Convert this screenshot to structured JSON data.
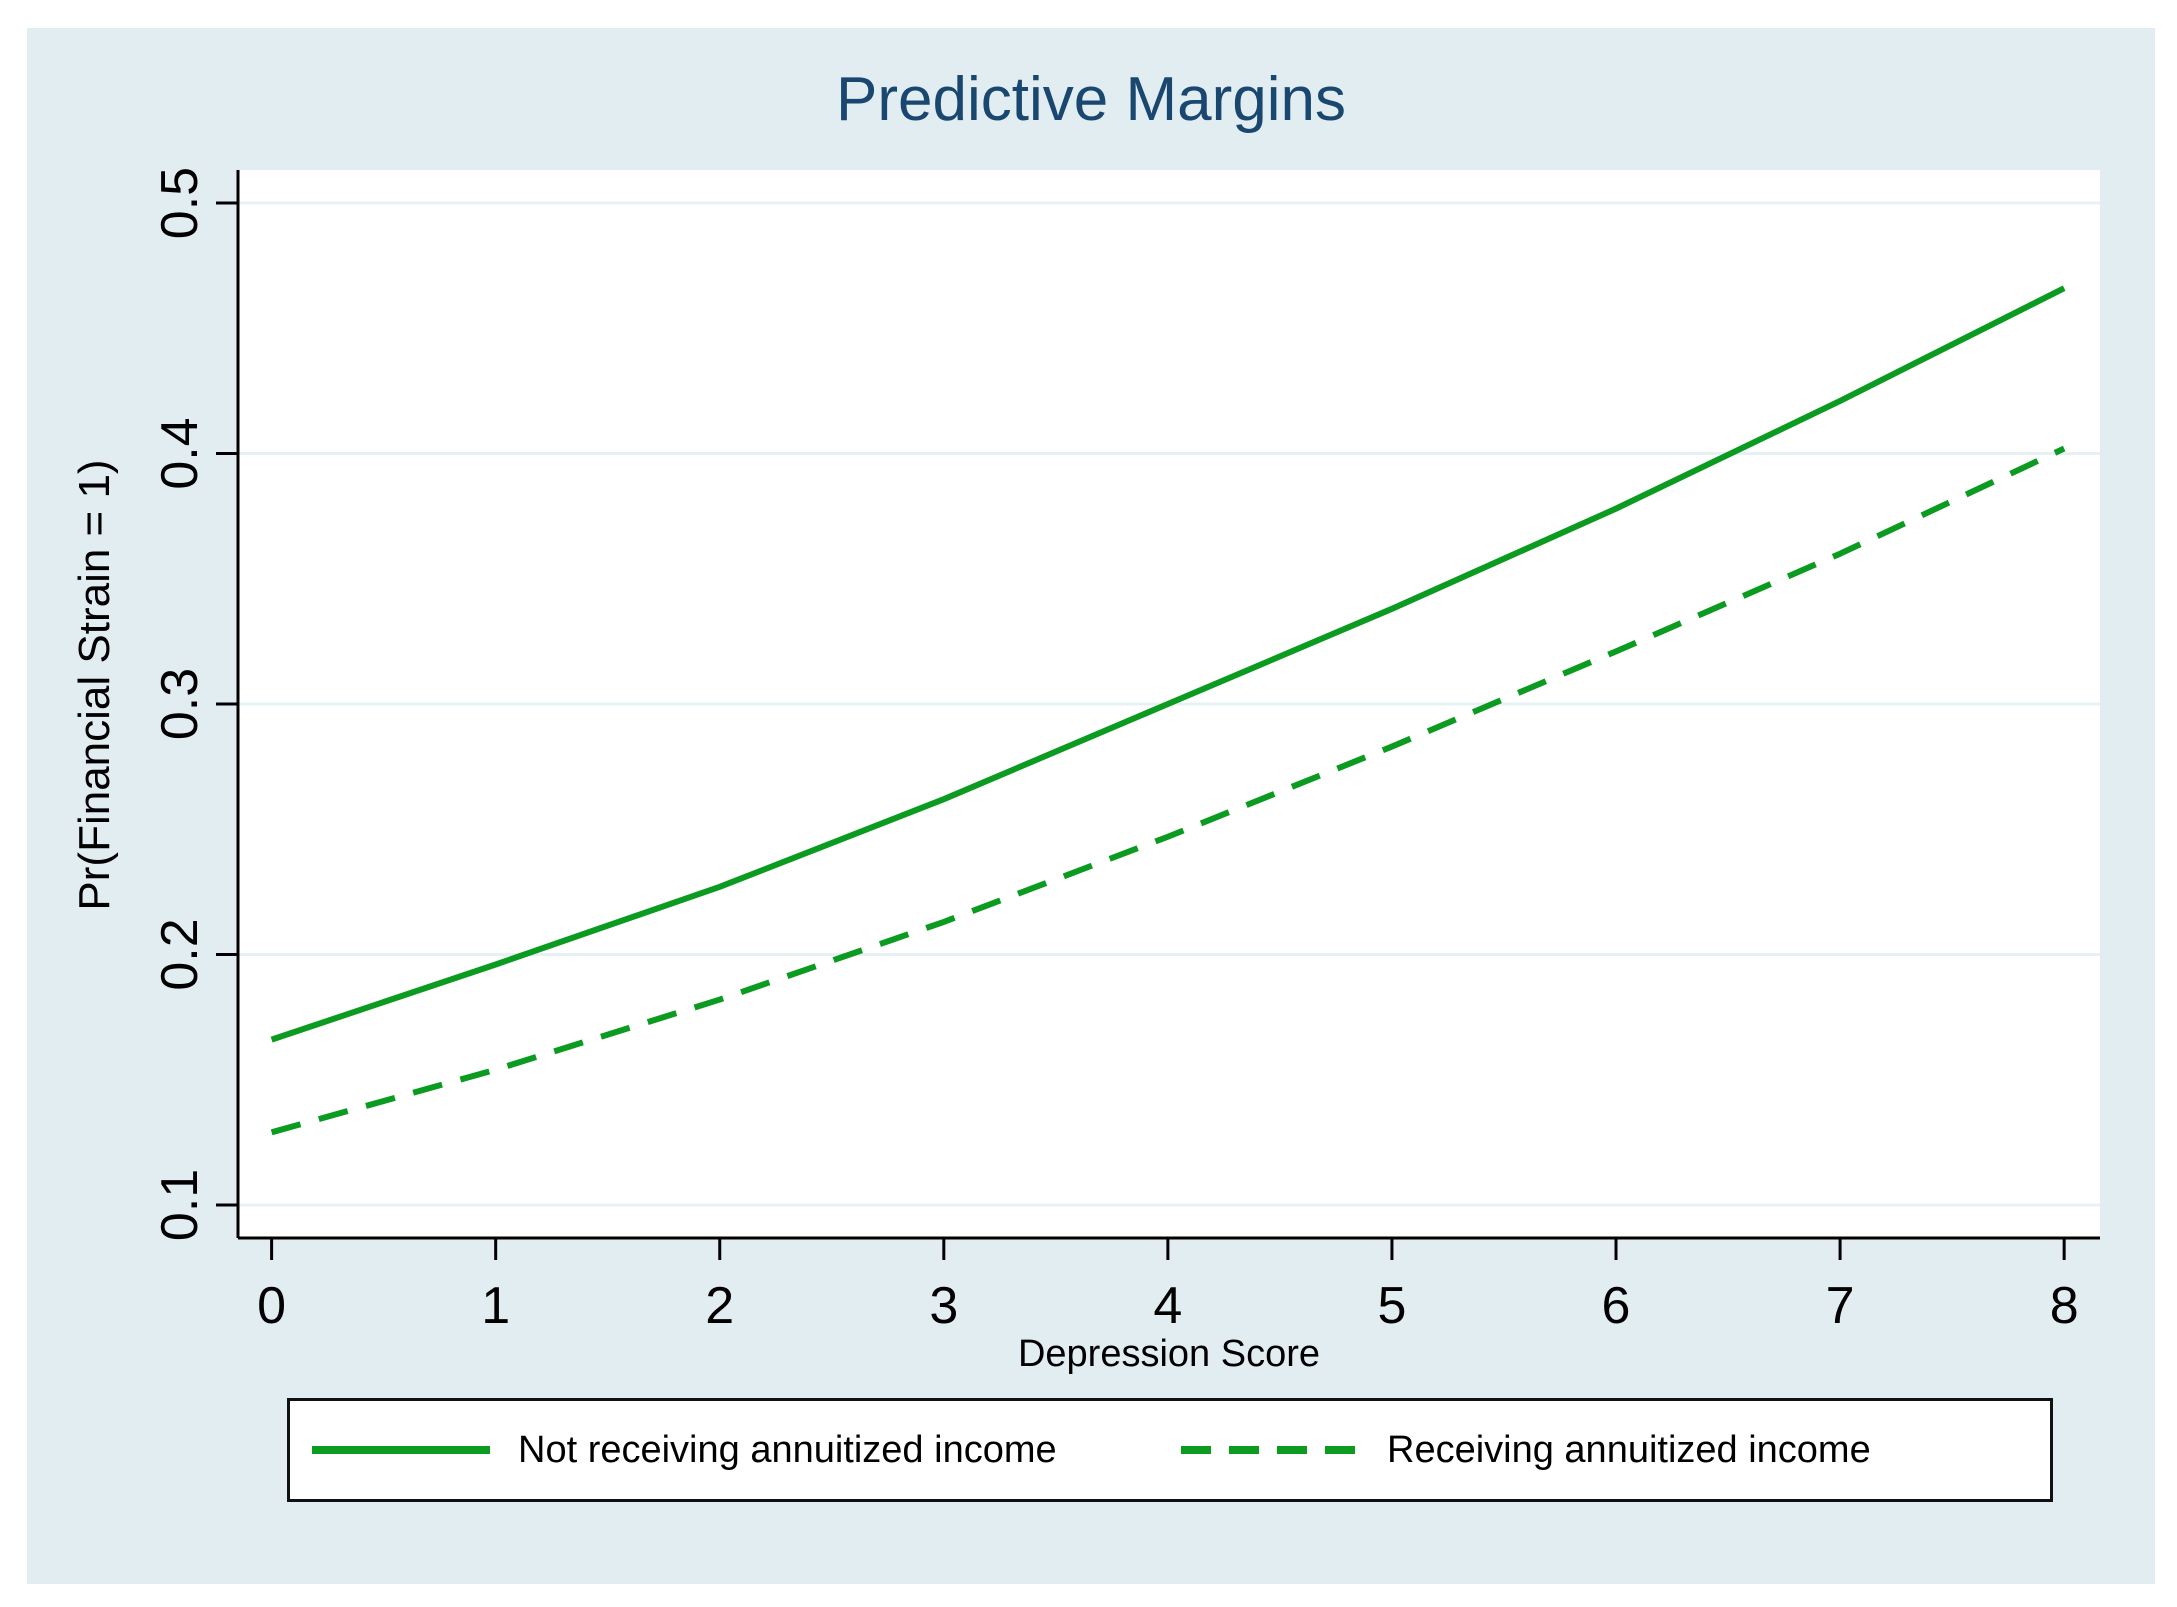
{
  "figure": {
    "colors": {
      "canvas_bg": "#e2edf2",
      "plot_bg": "#ffffff",
      "grid": "#e7f0f5",
      "axis": "#000000",
      "title_text": "#1a476f",
      "line_green": "#0b9b20",
      "legend_border": "#111111"
    }
  },
  "chart_data": {
    "type": "line",
    "title": "Predictive Margins",
    "xlabel": "Depression Score",
    "ylabel": "Pr(Financial Strain = 1)",
    "x": [
      0,
      1,
      2,
      3,
      4,
      5,
      6,
      7,
      8
    ],
    "x_tick_labels": [
      "0",
      "1",
      "2",
      "3",
      "4",
      "5",
      "6",
      "7",
      "8"
    ],
    "y_tick_values": [
      0.1,
      0.2,
      0.3,
      0.4,
      0.5
    ],
    "y_tick_labels": [
      "0.1",
      "0.2",
      "0.3",
      "0.4",
      "0.5"
    ],
    "xlim": [
      -0.15,
      8.16
    ],
    "ylim": [
      0.0868,
      0.5132
    ],
    "grid": true,
    "legend_position": "bottom",
    "series": [
      {
        "name": "Not receiving annuitized income",
        "style": "solid",
        "values": [
          0.166,
          0.196,
          0.227,
          0.262,
          0.3,
          0.338,
          0.378,
          0.421,
          0.466
        ]
      },
      {
        "name": "Receiving annuitized income",
        "style": "dashed",
        "values": [
          0.129,
          0.154,
          0.182,
          0.213,
          0.247,
          0.283,
          0.321,
          0.36,
          0.402
        ]
      }
    ]
  }
}
